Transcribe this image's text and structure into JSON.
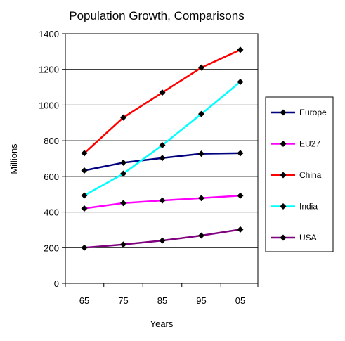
{
  "chart_data": {
    "type": "line",
    "title": "Population Growth, Comparisons",
    "xlabel": "Years",
    "ylabel": "Millions",
    "categories": [
      "65",
      "75",
      "85",
      "95",
      "05"
    ],
    "ylim": [
      0,
      1400
    ],
    "yticks": [
      "0",
      "200",
      "400",
      "600",
      "800",
      "1000",
      "1200",
      "1400"
    ],
    "grid": "horizontal",
    "legend_position": "right",
    "marker": "diamond",
    "series": [
      {
        "name": "Europe",
        "color": "#000080",
        "values": [
          633,
          677,
          703,
          727,
          730
        ]
      },
      {
        "name": "EU27",
        "color": "#ff00ff",
        "values": [
          420,
          450,
          465,
          478,
          492
        ]
      },
      {
        "name": "China",
        "color": "#ff0000",
        "values": [
          730,
          930,
          1070,
          1210,
          1310
        ]
      },
      {
        "name": "India",
        "color": "#00ffff",
        "values": [
          493,
          615,
          775,
          950,
          1130
        ]
      },
      {
        "name": "USA",
        "color": "#800080",
        "values": [
          200,
          218,
          240,
          268,
          302
        ]
      }
    ]
  }
}
